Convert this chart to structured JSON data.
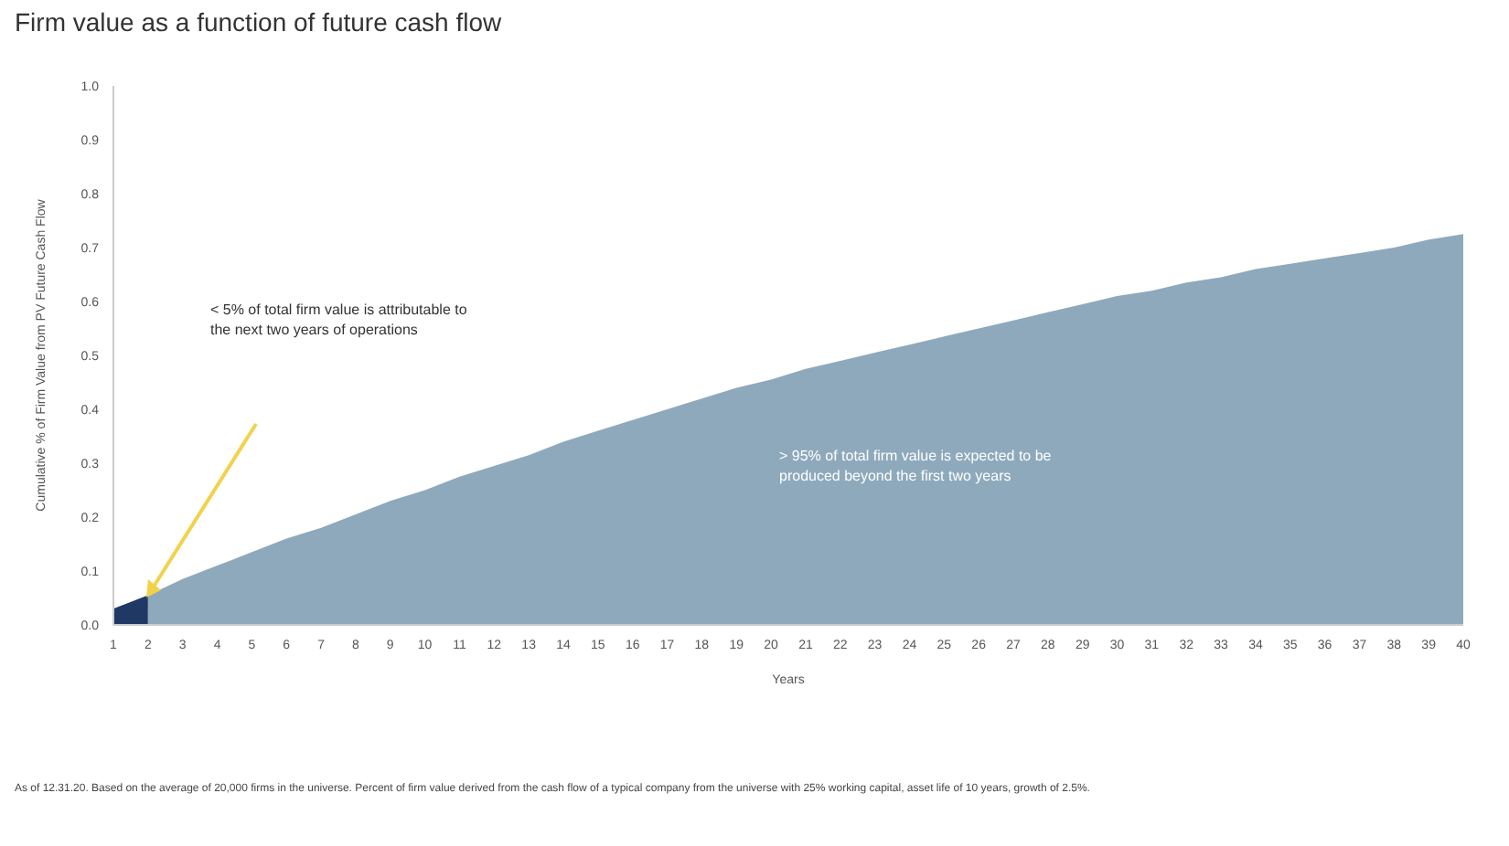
{
  "chart_data": {
    "type": "area",
    "title": "Firm value as a function of future cash flow",
    "xlabel": "Years",
    "ylabel": "Cumulative % of Firm Value from PV Future Cash Flow",
    "xlim": [
      1,
      40
    ],
    "xticks": [
      1,
      2,
      3,
      4,
      5,
      6,
      7,
      8,
      9,
      10,
      11,
      12,
      13,
      14,
      15,
      16,
      17,
      18,
      19,
      20,
      21,
      22,
      23,
      24,
      25,
      26,
      27,
      28,
      29,
      30,
      31,
      32,
      33,
      34,
      35,
      36,
      37,
      38,
      39,
      40
    ],
    "ylim": [
      0,
      1
    ],
    "yticks": [
      {
        "value": 0,
        "label": "0.0"
      },
      0.1,
      0.2,
      0.3,
      0.4,
      0.5,
      0.6,
      0.7,
      0.8,
      0.9,
      {
        "value": 1,
        "label": "1.0"
      }
    ],
    "series": [
      {
        "color": "#1f3864",
        "x": [
          1,
          2
        ],
        "values": [
          0.03,
          0.055
        ]
      },
      {
        "color": "#8ea9bc",
        "x": [
          2,
          3,
          4,
          5,
          6,
          7,
          8,
          9,
          10,
          11,
          12,
          13,
          14,
          15,
          16,
          17,
          18,
          19,
          20,
          21,
          22,
          23,
          24,
          25,
          26,
          27,
          28,
          29,
          30,
          31,
          32,
          33,
          34,
          35,
          36,
          37,
          38,
          39,
          40
        ],
        "values": [
          0.055,
          0.085,
          0.11,
          0.135,
          0.16,
          0.18,
          0.205,
          0.23,
          0.25,
          0.275,
          0.295,
          0.315,
          0.34,
          0.36,
          0.38,
          0.4,
          0.42,
          0.44,
          0.455,
          0.475,
          0.49,
          0.505,
          0.52,
          0.535,
          0.55,
          0.565,
          0.58,
          0.595,
          0.61,
          0.62,
          0.635,
          0.645,
          0.66,
          0.67,
          0.68,
          0.69,
          0.7,
          0.715,
          0.725
        ]
      }
    ],
    "annotations": [
      "< 5% of total firm value is attributable to the next two years of operations",
      "> 95% of total firm value is expected to be produced beyond the first two years",
      "As of 12.31.20. Based on the average of 20,000 firms in the universe. Percent of firm value derived from the cash flow of a typical company from the universe with 25% working capital, asset life of 10 years, growth of 2.5%."
    ]
  }
}
